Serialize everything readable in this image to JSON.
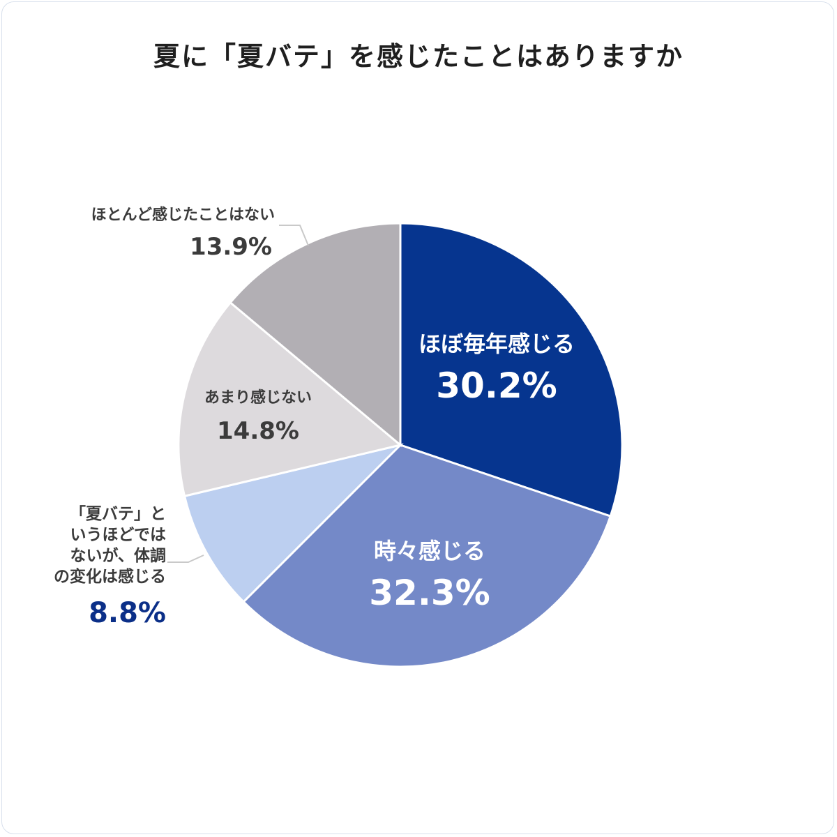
{
  "chart_data": {
    "type": "pie",
    "title": "夏に「夏バテ」を感じたことはありますか",
    "start_angle_deg": 0,
    "direction": "clockwise",
    "slices": [
      {
        "label": "ほぼ毎年感じる",
        "value": 30.2,
        "value_label": "30.2%",
        "color": "#06358f"
      },
      {
        "label": "時々感じる",
        "value": 32.3,
        "value_label": "32.3%",
        "color": "#7489c8"
      },
      {
        "label": "「夏バテ」というほどではないが、体調の変化は感じる",
        "label_lines": [
          "「夏バテ」と",
          "いうほどでは",
          "ないが、体調",
          "の変化は感じる"
        ],
        "value": 8.8,
        "value_label": "8.8%",
        "color": "#bccff0"
      },
      {
        "label": "あまり感じない",
        "value": 14.8,
        "value_label": "14.8%",
        "color": "#dddadd"
      },
      {
        "label": "ほとんど感じたことはない",
        "value": 13.9,
        "value_label": "13.9%",
        "color": "#b2afb4"
      }
    ]
  }
}
